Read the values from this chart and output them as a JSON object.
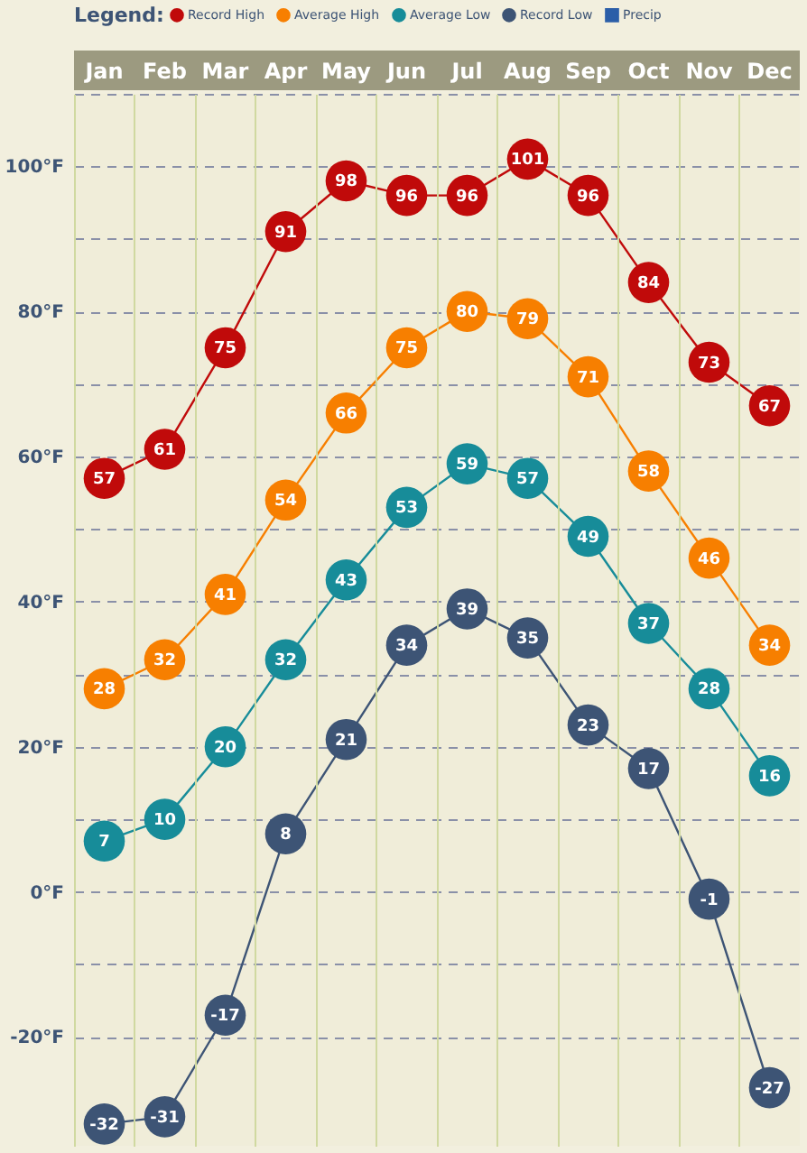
{
  "chart_data": {
    "type": "line",
    "legend_title": "Legend:",
    "legend": "top",
    "categories": [
      "Jan",
      "Feb",
      "Mar",
      "Apr",
      "May",
      "Jun",
      "Jul",
      "Aug",
      "Sep",
      "Oct",
      "Nov",
      "Dec"
    ],
    "series": [
      {
        "name": "Record High",
        "color": "#c00a0a",
        "values": [
          57,
          61,
          75,
          91,
          98,
          96,
          96,
          101,
          96,
          84,
          73,
          67
        ]
      },
      {
        "name": "Average High",
        "color": "#f77f00",
        "values": [
          28,
          32,
          41,
          54,
          66,
          75,
          80,
          79,
          71,
          58,
          46,
          34
        ]
      },
      {
        "name": "Average Low",
        "color": "#178c99",
        "values": [
          7,
          10,
          20,
          32,
          43,
          53,
          59,
          57,
          49,
          37,
          28,
          16
        ]
      },
      {
        "name": "Record Low",
        "color": "#3d5475",
        "values": [
          -32,
          -31,
          -17,
          8,
          21,
          34,
          39,
          35,
          23,
          17,
          -1,
          -27
        ]
      },
      {
        "name": "Precip",
        "type": "bar",
        "color": "#2b5ea8",
        "values": [
          null,
          null,
          null,
          null,
          null,
          null,
          null,
          null,
          null,
          null,
          null,
          null
        ]
      }
    ],
    "ylim": [
      -35,
      110
    ],
    "yticks": [
      {
        "value": 110,
        "label": null
      },
      {
        "value": 100,
        "label": "100°F"
      },
      {
        "value": 90,
        "label": null
      },
      {
        "value": 80,
        "label": "80°F"
      },
      {
        "value": 70,
        "label": null
      },
      {
        "value": 60,
        "label": "60°F"
      },
      {
        "value": 50,
        "label": null
      },
      {
        "value": 40,
        "label": "40°F"
      },
      {
        "value": 30,
        "label": null
      },
      {
        "value": 20,
        "label": "20°F"
      },
      {
        "value": 10,
        "label": null
      },
      {
        "value": 0,
        "label": "0°F"
      },
      {
        "value": -10,
        "label": null
      },
      {
        "value": -20,
        "label": "-20°F"
      }
    ],
    "grid": true,
    "marker": "circle",
    "line_style": "solid",
    "data_labels": true
  }
}
